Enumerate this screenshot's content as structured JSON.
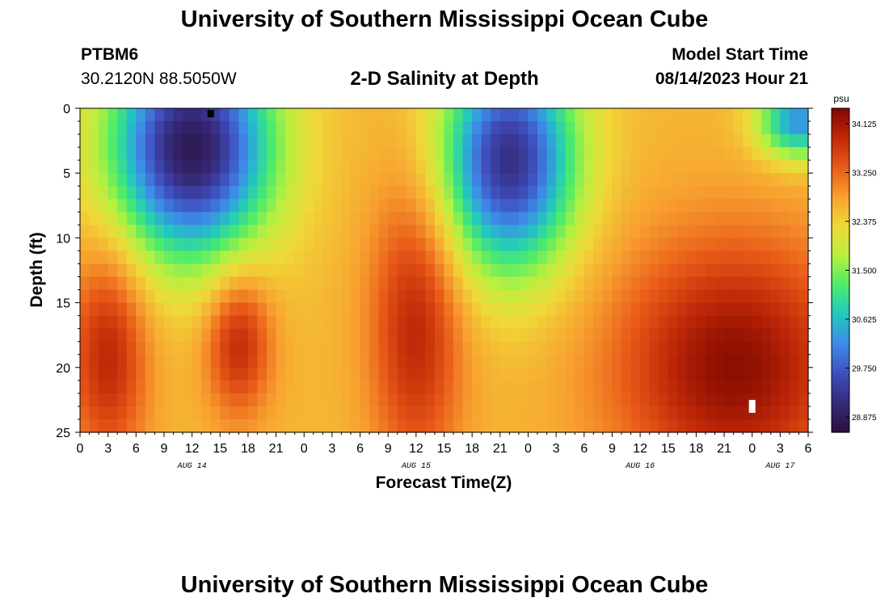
{
  "header": {
    "title": "University of Southern Mississippi Ocean Cube",
    "station_id": "PTBM6",
    "station_coords": "30.2120N  88.5050W",
    "plot_title": "2-D Salinity at Depth",
    "model_start_label": "Model Start Time",
    "model_start_value": "08/14/2023 Hour 21"
  },
  "footer": {
    "title": "University of Southern Mississippi Ocean Cube"
  },
  "chart_data": {
    "type": "heatmap",
    "title": "2-D Salinity at Depth",
    "xlabel": "Forecast Time(Z)",
    "ylabel": "Depth (ft)",
    "x_tick_labels": [
      "0",
      "3",
      "6",
      "9",
      "12",
      "15",
      "18",
      "21",
      "0",
      "3",
      "6",
      "9",
      "12",
      "15",
      "18",
      "21",
      "0",
      "3",
      "6",
      "9",
      "12",
      "15",
      "18",
      "21",
      "0",
      "3",
      "6"
    ],
    "x_range_hours": [
      0,
      78
    ],
    "date_labels": [
      {
        "label": "AUG 14",
        "hour": 12
      },
      {
        "label": "AUG 15",
        "hour": 36
      },
      {
        "label": "AUG 16",
        "hour": 60
      },
      {
        "label": "AUG 17",
        "hour": 75
      }
    ],
    "y_ticks": [
      0,
      5,
      10,
      15,
      20,
      25
    ],
    "y_range_ft": [
      0,
      25
    ],
    "y_reversed": true,
    "colorbar": {
      "unit": "psu",
      "range": [
        28.6,
        34.4
      ],
      "ticks": [
        "34.125",
        "33.250",
        "32.375",
        "31.500",
        "30.625",
        "29.750",
        "28.875"
      ],
      "colors": [
        "#2a1040",
        "#352a7a",
        "#3f4fbf",
        "#3d8ae8",
        "#22c8c0",
        "#4cec6a",
        "#b8f040",
        "#f0d838",
        "#f8a030",
        "#e85a18",
        "#c02808",
        "#800800"
      ]
    },
    "features": [
      {
        "kind": "low",
        "hour": 12,
        "depth": 3,
        "value": 28.8,
        "spread_h": 6,
        "spread_d": 6
      },
      {
        "kind": "low",
        "hour": 46,
        "depth": 4,
        "value": 29.2,
        "spread_h": 5,
        "spread_d": 6
      },
      {
        "kind": "low",
        "hour": 77,
        "depth": 1,
        "value": 30.2,
        "spread_h": 3,
        "spread_d": 2
      },
      {
        "kind": "high",
        "hour": 3,
        "depth": 19,
        "value": 33.9,
        "spread_h": 3,
        "spread_d": 6
      },
      {
        "kind": "high",
        "hour": 17,
        "depth": 18,
        "value": 33.9,
        "spread_h": 2.5,
        "spread_d": 4
      },
      {
        "kind": "high",
        "hour": 36,
        "depth": 17,
        "value": 33.9,
        "spread_h": 3.5,
        "spread_d": 8
      },
      {
        "kind": "high",
        "hour": 70,
        "depth": 20,
        "value": 34.3,
        "spread_h": 9,
        "spread_d": 7
      }
    ]
  }
}
